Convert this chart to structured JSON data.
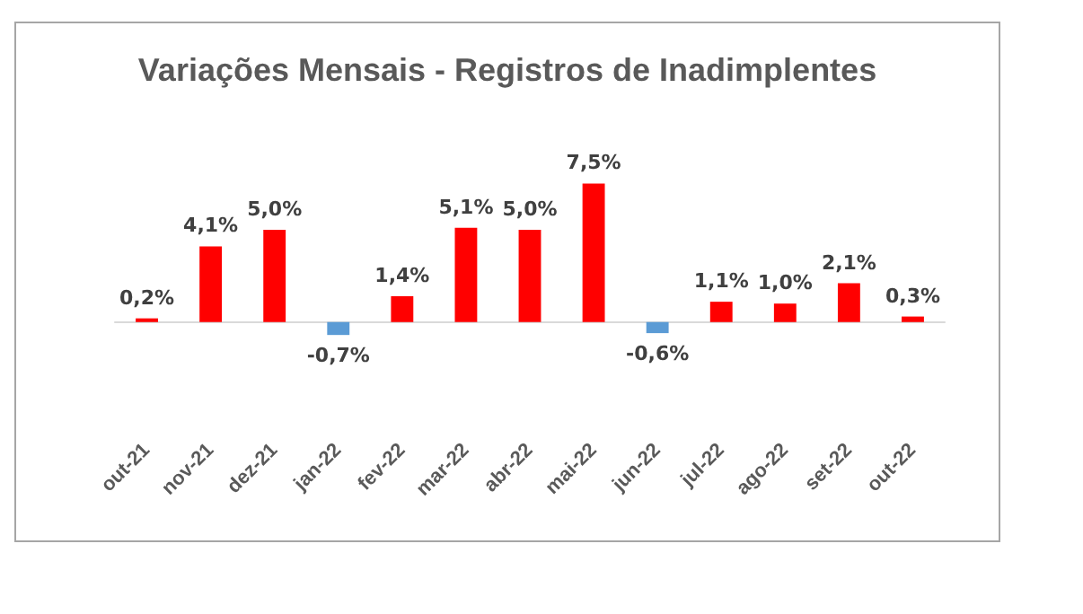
{
  "chart_data": {
    "type": "bar",
    "title": "Variações Mensais - Registros de Inadimplentes",
    "categories": [
      "out-21",
      "nov-21",
      "dez-21",
      "jan-22",
      "fev-22",
      "mar-22",
      "abr-22",
      "mai-22",
      "jun-22",
      "jul-22",
      "ago-22",
      "set-22",
      "out-22"
    ],
    "values": [
      0.2,
      4.1,
      5.0,
      -0.7,
      1.4,
      5.1,
      5.0,
      7.5,
      -0.6,
      1.1,
      1.0,
      2.1,
      0.3
    ],
    "value_labels": [
      "0,2%",
      "4,1%",
      "5,0%",
      "-0,7%",
      "1,4%",
      "5,1%",
      "5,0%",
      "7,5%",
      "-0,6%",
      "1,1%",
      "1,0%",
      "2,1%",
      "0,3%"
    ],
    "colors": [
      "#ff0000",
      "#ff0000",
      "#ff0000",
      "#5b9bd5",
      "#ff0000",
      "#ff0000",
      "#ff0000",
      "#ff0000",
      "#5b9bd5",
      "#ff0000",
      "#ff0000",
      "#ff0000",
      "#ff0000"
    ],
    "grid": false
  }
}
